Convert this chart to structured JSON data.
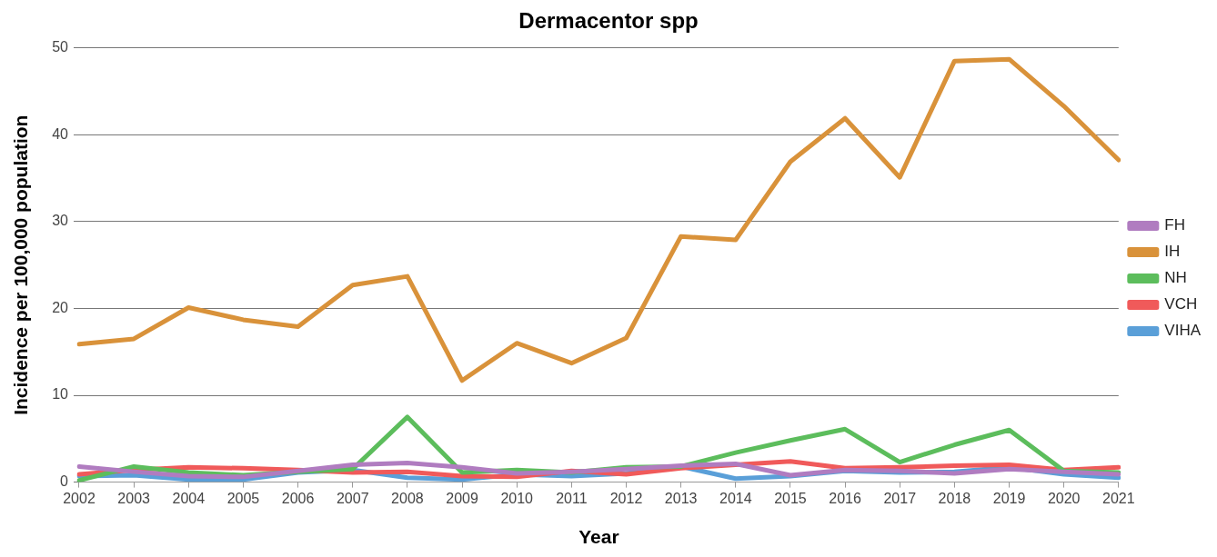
{
  "chart_data": {
    "type": "line",
    "title": "Dermacentor spp",
    "xlabel": "Year",
    "ylabel": "Incidence per 100,000 population",
    "categories": [
      "2002",
      "2003",
      "2004",
      "2005",
      "2006",
      "2007",
      "2008",
      "2009",
      "2010",
      "2011",
      "2012",
      "2013",
      "2014",
      "2015",
      "2016",
      "2017",
      "2018",
      "2019",
      "2020",
      "2021"
    ],
    "series": [
      {
        "name": "FH",
        "color": "#b07cc0",
        "values": [
          1.8,
          1.2,
          0.7,
          0.6,
          1.3,
          2.0,
          2.2,
          1.7,
          1.0,
          1.2,
          1.5,
          1.9,
          2.1,
          0.8,
          1.4,
          1.3,
          1.0,
          1.5,
          1.2,
          0.9
        ]
      },
      {
        "name": "IH",
        "color": "#d9923a",
        "values": [
          15.9,
          16.5,
          20.1,
          18.7,
          17.9,
          22.7,
          23.7,
          11.7,
          16.0,
          13.7,
          16.6,
          28.3,
          27.9,
          36.9,
          41.9,
          35.1,
          48.5,
          48.7,
          43.3,
          37.1
        ]
      },
      {
        "name": "NH",
        "color": "#5cbd5c",
        "values": [
          0.2,
          1.8,
          1.1,
          0.8,
          1.2,
          1.5,
          7.5,
          1.1,
          1.4,
          1.1,
          1.7,
          1.8,
          3.4,
          4.8,
          6.1,
          2.3,
          4.3,
          6.0,
          1.3,
          1.1
        ]
      },
      {
        "name": "VCH",
        "color": "#f05a5a",
        "values": [
          0.9,
          1.4,
          1.7,
          1.6,
          1.4,
          1.1,
          1.2,
          0.7,
          0.6,
          1.3,
          0.9,
          1.6,
          2.0,
          2.4,
          1.6,
          1.7,
          1.9,
          2.0,
          1.4,
          1.7
        ]
      },
      {
        "name": "VIHA",
        "color": "#5a9fd8",
        "values": [
          0.7,
          0.8,
          0.3,
          0.3,
          1.1,
          1.4,
          0.5,
          0.3,
          0.9,
          0.7,
          1.0,
          1.8,
          0.4,
          0.7,
          1.3,
          1.1,
          1.2,
          1.7,
          0.9,
          0.5
        ]
      }
    ],
    "ylim": [
      0,
      50
    ],
    "yticks": [
      0,
      10,
      20,
      30,
      40,
      50
    ],
    "grid": "y",
    "legend": "right",
    "marker": "none",
    "line_style": "solid"
  }
}
